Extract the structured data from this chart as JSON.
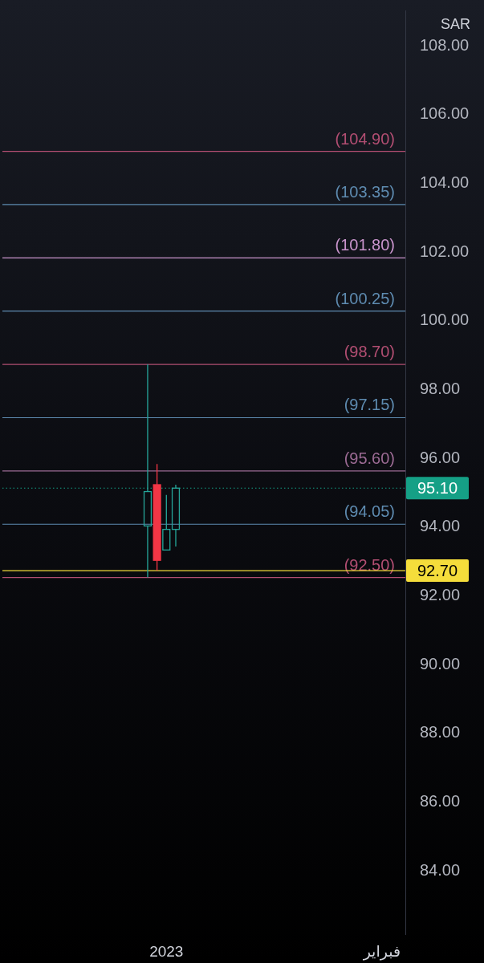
{
  "chart_data": {
    "type": "candlestick",
    "ylabel": "SAR",
    "categories": [
      null,
      null,
      null,
      null,
      null,
      null,
      null,
      null,
      null,
      null,
      null,
      null,
      null,
      null,
      null,
      null,
      null,
      "2023",
      null,
      null,
      null,
      null,
      null,
      null,
      null,
      null,
      null,
      null,
      null,
      null,
      null,
      null,
      null,
      null,
      null,
      null,
      null,
      null,
      null,
      null,
      "فبراير",
      null,
      null
    ],
    "ohlc": [
      null,
      null,
      null,
      null,
      null,
      null,
      null,
      null,
      null,
      null,
      null,
      null,
      null,
      null,
      null,
      [
        94.0,
        98.7,
        92.5,
        95.0
      ],
      [
        95.2,
        95.8,
        92.7,
        93.0
      ],
      [
        93.3,
        94.9,
        93.3,
        93.9
      ],
      [
        93.9,
        95.2,
        93.4,
        95.1
      ],
      null,
      null,
      null,
      null,
      null,
      null,
      null,
      null,
      null,
      null,
      null,
      null,
      null,
      null,
      null,
      null,
      null,
      null,
      null,
      null,
      null,
      null,
      null,
      null
    ],
    "colors": [
      null,
      null,
      null,
      null,
      null,
      null,
      null,
      null,
      null,
      null,
      null,
      null,
      null,
      null,
      null,
      "#26a69a",
      "#f23645",
      "#26a69a",
      "#26a69a",
      null,
      null,
      null,
      null,
      null,
      null,
      null,
      null,
      null,
      null,
      null,
      null,
      null,
      null,
      null,
      null,
      null,
      null,
      null,
      null,
      null,
      null,
      null,
      null
    ],
    "ylim": [
      82.1,
      109.0
    ],
    "yticks": [
      {
        "value": 84,
        "label": "84.00"
      },
      {
        "value": 86,
        "label": "86.00"
      },
      {
        "value": 88,
        "label": "88.00"
      },
      {
        "value": 90,
        "label": "90.00"
      },
      {
        "value": 92,
        "label": "92.00"
      },
      {
        "value": 94,
        "label": "94.00"
      },
      {
        "value": 96,
        "label": "96.00"
      },
      {
        "value": 98,
        "label": "98.00"
      },
      {
        "value": 100,
        "label": "100.00"
      },
      {
        "value": 102,
        "label": "102.00"
      },
      {
        "value": 104,
        "label": "104.00"
      },
      {
        "value": 106,
        "label": "106.00"
      },
      {
        "value": 108,
        "label": "108.00"
      }
    ],
    "ref_lines": [
      {
        "axis": "y",
        "value": 104.9,
        "label": "(104.90)",
        "color": "#b24e72"
      },
      {
        "axis": "y",
        "value": 103.35,
        "label": "(103.35)",
        "color": "#5e8bb0"
      },
      {
        "axis": "y",
        "value": 101.8,
        "label": "(101.80)",
        "color": "#c994cc"
      },
      {
        "axis": "y",
        "value": 100.25,
        "label": "(100.25)",
        "color": "#5e8bb0"
      },
      {
        "axis": "y",
        "value": 98.7,
        "label": "(98.70)",
        "color": "#b24e72"
      },
      {
        "axis": "y",
        "value": 97.15,
        "label": "(97.15)",
        "color": "#5e8bb0"
      },
      {
        "axis": "y",
        "value": 95.6,
        "label": "(95.60)",
        "color": "#9c6b94"
      },
      {
        "axis": "y",
        "value": 94.05,
        "label": "(94.05)",
        "color": "#5e8bb0"
      },
      {
        "axis": "y",
        "value": 92.5,
        "label": "(92.50)",
        "color": "#b24e72"
      },
      {
        "axis": "y",
        "value": 95.1,
        "color": "#15a086",
        "line_style": "dotted"
      },
      {
        "axis": "y",
        "value": 92.7,
        "color": "#f5dd3b"
      }
    ],
    "annotations": [
      "95.10",
      "92.70"
    ]
  }
}
